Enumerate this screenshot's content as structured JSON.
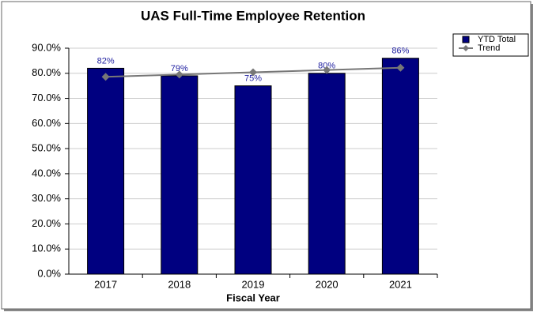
{
  "chart_data": {
    "type": "bar",
    "title": "UAS Full-Time Employee Retention",
    "x_label": "Fiscal Year",
    "categories": [
      "2017",
      "2018",
      "2019",
      "2020",
      "2021"
    ],
    "series": [
      {
        "name": "YTD Total",
        "type": "bar",
        "color": "#000080",
        "values": [
          82,
          79,
          75,
          80,
          86
        ],
        "value_labels": [
          "82%",
          "79%",
          "75%",
          "80%",
          "86%"
        ]
      },
      {
        "name": "Trend",
        "type": "line",
        "color": "#777777",
        "values": [
          78.6,
          79.5,
          80.4,
          81.3,
          82.2
        ]
      }
    ],
    "ylim": [
      0,
      90
    ],
    "yticks": [
      {
        "value": 0,
        "label": "0.0%"
      },
      {
        "value": 10,
        "label": "10.0%"
      },
      {
        "value": 20,
        "label": "20.0%"
      },
      {
        "value": 30,
        "label": "30.0%"
      },
      {
        "value": 40,
        "label": "40.0%"
      },
      {
        "value": 50,
        "label": "50.0%"
      },
      {
        "value": 60,
        "label": "60.0%"
      },
      {
        "value": 70,
        "label": "70.0%"
      },
      {
        "value": 80,
        "label": "80.0%"
      },
      {
        "value": 90,
        "label": "90.0%"
      }
    ],
    "grid": true,
    "legend": "top-right"
  }
}
